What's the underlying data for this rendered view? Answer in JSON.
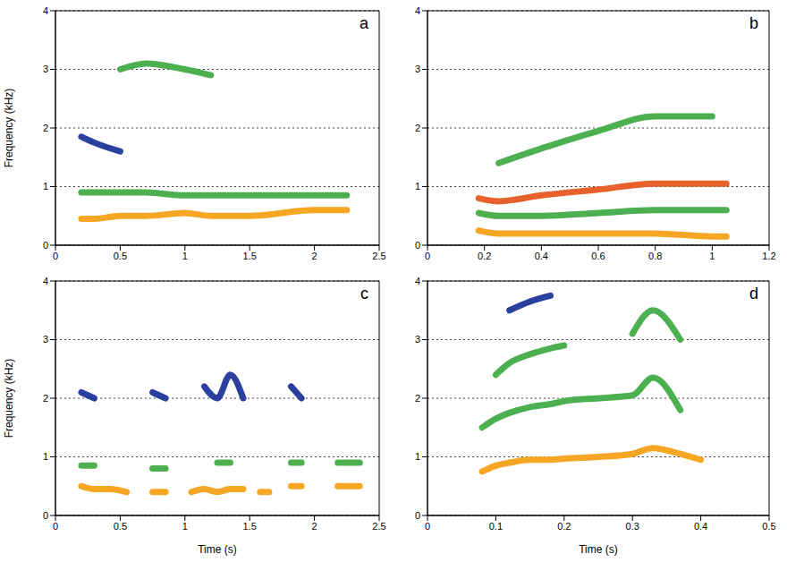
{
  "chart_data": [
    {
      "type": "line",
      "panel": "a",
      "ylabel": "Frequency (kHz)",
      "x": [
        0.2,
        0.3,
        0.5,
        0.7,
        1.0,
        1.2,
        1.5,
        2.0,
        2.25
      ],
      "series": [
        {
          "color": "#f5a623",
          "values": [
            0.45,
            0.45,
            0.5,
            0.5,
            0.55,
            0.5,
            0.5,
            0.6,
            0.6
          ]
        },
        {
          "color": "#4caf50",
          "values": [
            0.9,
            0.9,
            0.9,
            0.9,
            0.85,
            0.85,
            0.85,
            0.85,
            0.85
          ]
        },
        {
          "color": "#2a3f9e",
          "values": [
            1.85,
            1.75,
            1.6,
            null,
            null,
            null,
            null,
            null,
            null
          ]
        },
        {
          "color": "#4caf50",
          "values": [
            null,
            null,
            3.0,
            3.1,
            3.0,
            2.9,
            null,
            null,
            null
          ]
        }
      ],
      "xlim": [
        0,
        2.5
      ],
      "xticks": [
        0,
        0.5,
        1,
        1.5,
        2,
        2.5
      ],
      "ylim": [
        0,
        4
      ],
      "yticks": [
        0,
        1,
        2,
        3,
        4
      ],
      "grid": true
    },
    {
      "type": "line",
      "panel": "b",
      "x": [
        0.18,
        0.25,
        0.4,
        0.6,
        0.8,
        1.0,
        1.05
      ],
      "series": [
        {
          "color": "#f5a623",
          "values": [
            0.25,
            0.2,
            0.2,
            0.2,
            0.2,
            0.15,
            0.15
          ]
        },
        {
          "color": "#4caf50",
          "values": [
            0.55,
            0.5,
            0.5,
            0.55,
            0.6,
            0.6,
            0.6
          ]
        },
        {
          "color": "#e8602c",
          "values": [
            0.8,
            0.75,
            0.85,
            0.95,
            1.05,
            1.05,
            1.05
          ]
        },
        {
          "color": "#4caf50",
          "values": [
            null,
            1.4,
            1.65,
            1.95,
            2.2,
            2.2,
            null
          ]
        }
      ],
      "xlim": [
        0,
        1.2
      ],
      "xticks": [
        0,
        0.2,
        0.4,
        0.6,
        0.8,
        1,
        1.2
      ],
      "ylim": [
        0,
        4
      ],
      "yticks": [
        0,
        1,
        2,
        3,
        4
      ],
      "grid": true
    },
    {
      "type": "line",
      "panel": "c",
      "ylabel": "Frequency (kHz)",
      "xlabel": "Time (s)",
      "x": [
        0.2,
        0.3,
        0.42,
        0.55,
        0.65,
        0.75,
        0.85,
        0.95,
        1.05,
        1.15,
        1.25,
        1.35,
        1.45,
        1.5,
        1.58,
        1.65,
        1.75,
        1.82,
        1.9,
        1.97,
        2.1,
        2.18,
        2.35
      ],
      "series": [
        {
          "color": "#f5a623",
          "values": [
            0.5,
            0.45,
            0.45,
            0.4,
            null,
            0.4,
            0.4,
            null,
            0.4,
            0.45,
            0.4,
            0.45,
            0.45,
            null,
            0.4,
            0.4,
            null,
            0.5,
            0.5,
            null,
            null,
            0.5,
            0.5
          ]
        },
        {
          "color": "#4caf50",
          "values": [
            0.85,
            0.85,
            null,
            null,
            null,
            0.8,
            0.8,
            null,
            null,
            null,
            0.9,
            0.9,
            null,
            null,
            null,
            null,
            null,
            0.9,
            0.9,
            null,
            null,
            0.9,
            0.9
          ]
        },
        {
          "color": "#2a3f9e",
          "values": [
            2.1,
            2.0,
            null,
            null,
            null,
            2.1,
            2.0,
            null,
            null,
            2.2,
            2.0,
            2.4,
            2.0,
            null,
            null,
            null,
            null,
            2.2,
            2.0,
            null,
            null,
            null,
            null
          ]
        }
      ],
      "xlim": [
        0,
        2.5
      ],
      "xticks": [
        0,
        0.5,
        1,
        1.5,
        2,
        2.5
      ],
      "ylim": [
        0,
        4
      ],
      "yticks": [
        0,
        1,
        2,
        3,
        4
      ],
      "grid": true
    },
    {
      "type": "line",
      "panel": "d",
      "xlabel": "Time (s)",
      "x": [
        0.08,
        0.1,
        0.12,
        0.15,
        0.18,
        0.2,
        0.25,
        0.3,
        0.33,
        0.37,
        0.4
      ],
      "series": [
        {
          "color": "#f5a623",
          "values": [
            0.75,
            0.85,
            0.9,
            0.95,
            0.95,
            0.97,
            1.0,
            1.05,
            1.15,
            1.05,
            0.95
          ]
        },
        {
          "color": "#4caf50",
          "values": [
            1.5,
            1.65,
            1.75,
            1.85,
            1.9,
            1.95,
            2.0,
            2.05,
            2.35,
            1.8,
            null
          ]
        },
        {
          "color": "#4caf50",
          "values": [
            null,
            2.4,
            2.6,
            2.75,
            2.85,
            2.9,
            null,
            3.1,
            3.5,
            3.0,
            null
          ]
        },
        {
          "color": "#2a3f9e",
          "values": [
            null,
            null,
            3.5,
            3.65,
            3.75,
            null,
            null,
            null,
            null,
            null,
            null
          ]
        }
      ],
      "xlim": [
        0,
        0.5
      ],
      "xticks": [
        0,
        0.1,
        0.2,
        0.3,
        0.4,
        0.5
      ],
      "ylim": [
        0,
        4
      ],
      "yticks": [
        0,
        1,
        2,
        3,
        4
      ],
      "grid": true
    }
  ]
}
